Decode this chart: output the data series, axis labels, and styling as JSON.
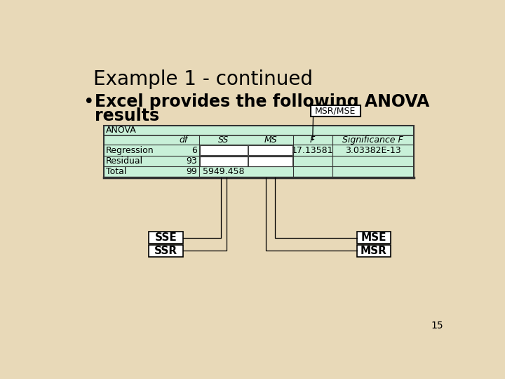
{
  "title": "Example 1 - continued",
  "bullet_line1": "Excel provides the following ANOVA",
  "bullet_line2": "results",
  "bg_color": "#e8d9b8",
  "table_bg": "#c8f0d8",
  "table_border": "#333333",
  "cell_white": "#ffffff",
  "anova_label": "ANOVA",
  "col_headers": [
    "",
    "df",
    "SS",
    "MS",
    "F",
    "Significance F"
  ],
  "rows": [
    [
      "Regression",
      "6",
      "",
      "",
      "17.13581",
      "3.03382E-13"
    ],
    [
      "Residual",
      "93",
      "",
      "",
      "",
      ""
    ],
    [
      "Total",
      "99",
      "5949.458",
      "",
      "",
      ""
    ]
  ],
  "callout_msr_mse": "MSR/MSE",
  "label_sse": "SSE",
  "label_ssr": "SSR",
  "label_mse": "MSE",
  "label_msr": "MSR",
  "page_number": "15",
  "title_fontsize": 20,
  "bullet_fontsize": 17,
  "table_fontsize": 9
}
